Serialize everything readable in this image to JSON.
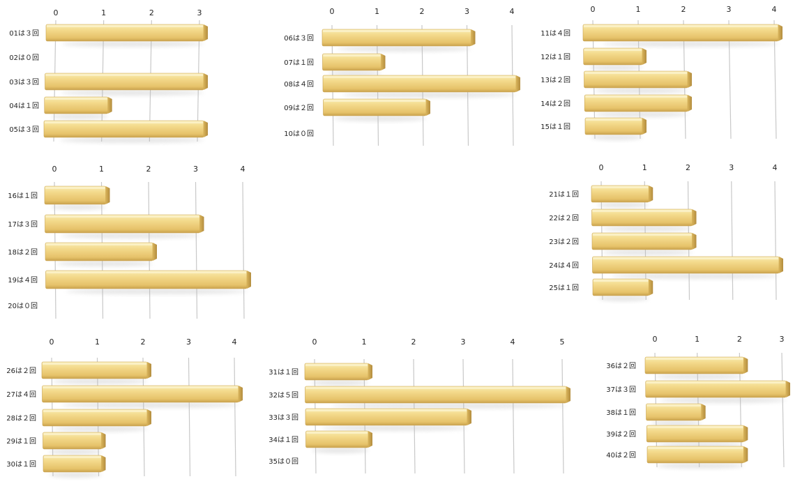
{
  "colors": {
    "bar_top": "#f7e6a3",
    "bar_mid": "#efd07a",
    "bar_bottom": "#d9b45c",
    "bar_end": "#c9a24e",
    "grid": "#c8c8c8",
    "text": "#222222"
  },
  "chart_data": [
    {
      "type": "bar",
      "orientation": "horizontal",
      "title": "",
      "xlim": [
        0,
        3
      ],
      "ticks": [
        "0",
        "1",
        "2",
        "3"
      ],
      "categories": [
        "01は３回",
        "02は０回",
        "03は３回",
        "04は１回",
        "05は３回"
      ],
      "values": [
        3,
        0,
        3,
        1,
        3
      ]
    },
    {
      "type": "bar",
      "orientation": "horizontal",
      "title": "",
      "xlim": [
        0,
        4
      ],
      "ticks": [
        "0",
        "1",
        "2",
        "3",
        "4"
      ],
      "categories": [
        "06は３回",
        "07は１回",
        "08は４回",
        "09は２回",
        "10は０回"
      ],
      "values": [
        3,
        1,
        4,
        2,
        0
      ]
    },
    {
      "type": "bar",
      "orientation": "horizontal",
      "title": "",
      "xlim": [
        0,
        4
      ],
      "ticks": [
        "0",
        "1",
        "2",
        "3",
        "4"
      ],
      "categories": [
        "11は４回",
        "12は１回",
        "13は２回",
        "14は２回",
        "15は１回"
      ],
      "values": [
        4,
        1,
        2,
        2,
        1
      ]
    },
    {
      "type": "bar",
      "orientation": "horizontal",
      "title": "",
      "xlim": [
        0,
        4
      ],
      "ticks": [
        "0",
        "1",
        "2",
        "3",
        "4"
      ],
      "categories": [
        "16は１回",
        "17は３回",
        "18は２回",
        "19は４回",
        "20は０回"
      ],
      "values": [
        1,
        3,
        2,
        4,
        0
      ]
    },
    {
      "type": "bar",
      "orientation": "horizontal",
      "title": "",
      "xlim": [
        0,
        4
      ],
      "ticks": [
        "0",
        "1",
        "2",
        "3",
        "4"
      ],
      "categories": [
        "21は１回",
        "22は２回",
        "23は２回",
        "24は４回",
        "25は１回"
      ],
      "values": [
        1,
        2,
        2,
        4,
        1
      ]
    },
    {
      "type": "bar",
      "orientation": "horizontal",
      "title": "",
      "xlim": [
        0,
        4
      ],
      "ticks": [
        "0",
        "1",
        "2",
        "3",
        "4"
      ],
      "categories": [
        "26は２回",
        "27は４回",
        "28は２回",
        "29は１回",
        "30は１回"
      ],
      "values": [
        2,
        4,
        2,
        1,
        1
      ]
    },
    {
      "type": "bar",
      "orientation": "horizontal",
      "title": "",
      "xlim": [
        0,
        5
      ],
      "ticks": [
        "0",
        "1",
        "2",
        "3",
        "4",
        "5"
      ],
      "categories": [
        "31は１回",
        "32は５回",
        "33は３回",
        "34は１回",
        "35は０回"
      ],
      "values": [
        1,
        5,
        3,
        1,
        0
      ]
    },
    {
      "type": "bar",
      "orientation": "horizontal",
      "title": "",
      "xlim": [
        0,
        3
      ],
      "ticks": [
        "0",
        "1",
        "2",
        "3"
      ],
      "categories": [
        "36は２回",
        "37は３回",
        "38は１回",
        "39は２回",
        "40は２回"
      ],
      "values": [
        2,
        3,
        1,
        2,
        2
      ]
    }
  ]
}
